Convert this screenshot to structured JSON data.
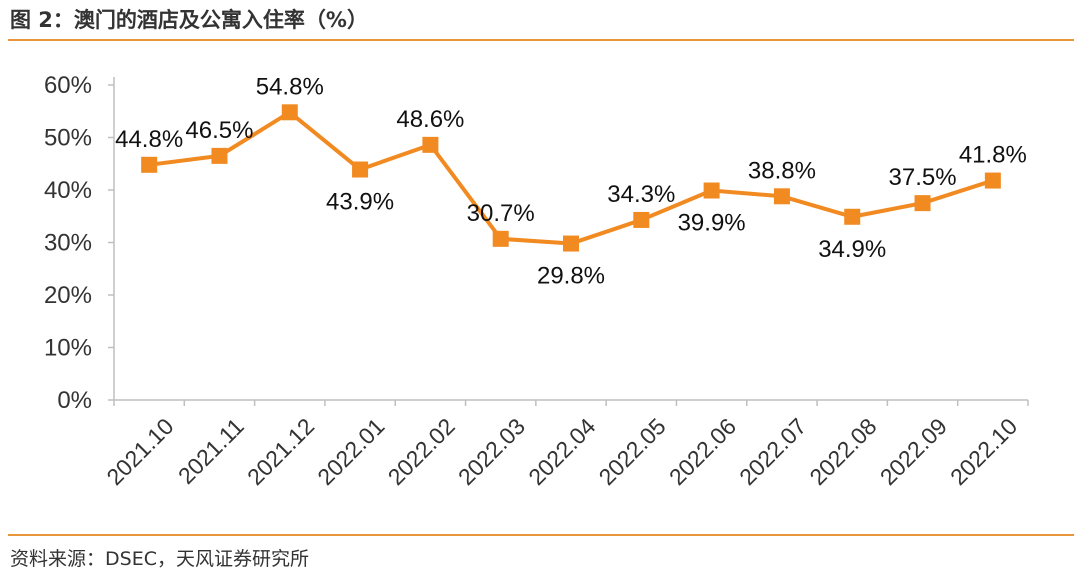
{
  "figure": {
    "title": "图 2：澳门的酒店及公寓入住率（%）",
    "source": "资料来源：DSEC，天风证券研究所"
  },
  "colors": {
    "accent": "#E8963C",
    "series": "#F28A22",
    "axis": "#BFBFBF"
  },
  "chart_data": {
    "type": "line",
    "categories": [
      "2021.10",
      "2021.11",
      "2021.12",
      "2022.01",
      "2022.02",
      "2022.03",
      "2022.04",
      "2022.05",
      "2022.06",
      "2022.07",
      "2022.08",
      "2022.09",
      "2022.10"
    ],
    "series": [
      {
        "values": [
          44.8,
          46.5,
          54.8,
          43.9,
          48.6,
          30.7,
          29.8,
          34.3,
          39.9,
          38.8,
          34.9,
          37.5,
          41.8
        ],
        "labels": [
          "44.8%",
          "46.5%",
          "54.8%",
          "43.9%",
          "48.6%",
          "30.7%",
          "29.8%",
          "34.3%",
          "39.9%",
          "38.8%",
          "34.9%",
          "37.5%",
          "41.8%"
        ],
        "marker": "square"
      }
    ],
    "yticks": [
      "0%",
      "10%",
      "20%",
      "30%",
      "40%",
      "50%",
      "60%"
    ],
    "ylim": [
      0,
      60
    ],
    "grid": false,
    "legend": "none"
  }
}
